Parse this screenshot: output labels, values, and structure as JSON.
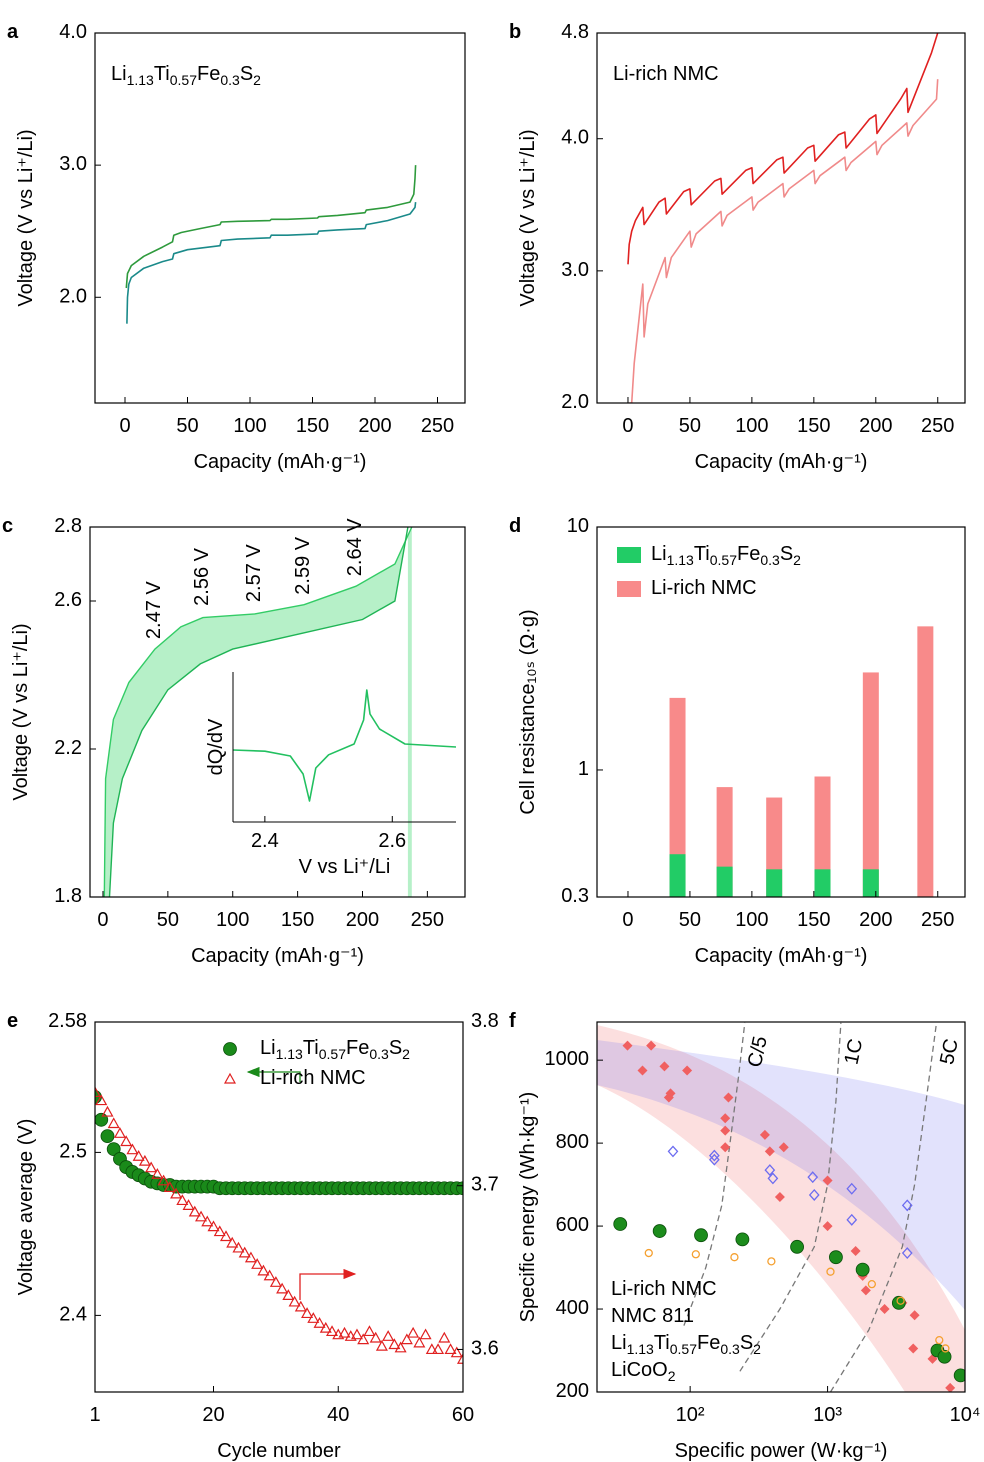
{
  "chart_data": [
    {
      "panel": "a",
      "type": "line",
      "label": "Li1.13Ti0.57Fe0.3S2",
      "xlabel": "Capacity (mAh·g⁻¹)",
      "ylabel": "Voltage (V vs Li⁺/Li)",
      "xlim": [
        -24,
        272
      ],
      "ylim": [
        1.2,
        4.0
      ],
      "xticks": [
        0,
        50,
        100,
        150,
        200,
        250
      ],
      "yticks": [
        {
          "value": 2,
          "label": "2.0"
        },
        {
          "value": 3,
          "label": "3.0"
        },
        {
          "value": 4,
          "label": "4.0"
        }
      ],
      "series": [
        {
          "color": "#2e9a3c",
          "x": [
            1,
            2,
            5,
            15,
            30,
            38,
            39,
            45,
            60,
            76,
            77,
            90,
            116,
            117,
            130,
            154,
            155,
            170,
            192,
            193,
            210,
            228,
            231,
            232,
            232.5
          ],
          "values": [
            2.07,
            2.18,
            2.24,
            2.31,
            2.38,
            2.42,
            2.47,
            2.49,
            2.52,
            2.55,
            2.57,
            2.575,
            2.58,
            2.59,
            2.59,
            2.6,
            2.61,
            2.62,
            2.64,
            2.66,
            2.68,
            2.72,
            2.78,
            2.9,
            3.0
          ]
        },
        {
          "color": "#1a8a8a",
          "x": [
            1.5,
            2,
            3,
            5,
            15,
            30,
            38,
            39,
            50,
            76,
            77,
            90,
            116,
            117,
            130,
            154,
            155,
            170,
            192,
            193,
            210,
            228,
            232,
            232.5
          ],
          "values": [
            1.8,
            2.0,
            2.1,
            2.15,
            2.22,
            2.27,
            2.29,
            2.33,
            2.36,
            2.39,
            2.43,
            2.44,
            2.45,
            2.47,
            2.47,
            2.48,
            2.5,
            2.51,
            2.52,
            2.55,
            2.58,
            2.63,
            2.68,
            2.72
          ]
        }
      ]
    },
    {
      "panel": "b",
      "type": "line",
      "label": "Li-rich NMC",
      "xlabel": "Capacity (mAh·g⁻¹)",
      "ylabel": "Voltage (V vs Li⁺/Li)",
      "xlim": [
        -25,
        272
      ],
      "ylim": [
        2.0,
        4.8
      ],
      "xticks": [
        0,
        50,
        100,
        150,
        200,
        250
      ],
      "yticks": [
        {
          "value": 2,
          "label": "2.0"
        },
        {
          "value": 3,
          "label": "3.0"
        },
        {
          "value": 4,
          "label": "4.0"
        },
        4.8
      ],
      "series": [
        {
          "color": "#e02020",
          "x": [
            0,
            1,
            3,
            6,
            12,
            13,
            25,
            30,
            31,
            45,
            50,
            51,
            70,
            75,
            76,
            95,
            100,
            101,
            120,
            125,
            126,
            145,
            150,
            151,
            170,
            175,
            176,
            195,
            200,
            201,
            220,
            225,
            226,
            245,
            250
          ],
          "values": [
            3.05,
            3.2,
            3.3,
            3.38,
            3.48,
            3.35,
            3.52,
            3.55,
            3.43,
            3.6,
            3.62,
            3.5,
            3.68,
            3.7,
            3.58,
            3.76,
            3.78,
            3.66,
            3.84,
            3.86,
            3.74,
            3.93,
            3.95,
            3.83,
            4.03,
            4.05,
            3.93,
            4.15,
            4.18,
            4.04,
            4.3,
            4.38,
            4.2,
            4.65,
            4.8
          ]
        },
        {
          "color": "#f08a8a",
          "x": [
            250,
            249,
            230,
            226,
            225,
            205,
            201,
            200,
            180,
            176,
            175,
            155,
            151,
            150,
            130,
            126,
            125,
            105,
            101,
            100,
            80,
            76,
            75,
            55,
            51,
            50,
            35,
            31,
            30,
            16,
            13,
            12,
            5,
            3,
            1
          ],
          "values": [
            4.45,
            4.3,
            4.1,
            4.02,
            4.12,
            3.95,
            3.88,
            3.98,
            3.82,
            3.76,
            3.86,
            3.72,
            3.66,
            3.76,
            3.62,
            3.56,
            3.66,
            3.52,
            3.46,
            3.56,
            3.42,
            3.34,
            3.45,
            3.28,
            3.18,
            3.3,
            3.1,
            2.95,
            3.1,
            2.75,
            2.5,
            2.9,
            2.3,
            2.0,
            2.0
          ]
        }
      ]
    },
    {
      "panel": "c",
      "type": "area",
      "xlabel": "Capacity (mAh·g⁻¹)",
      "ylabel": "Voltage (V vs Li⁺/Li)",
      "xlim": [
        -10,
        279
      ],
      "ylim": [
        1.8,
        2.8
      ],
      "xticks": [
        0,
        50,
        100,
        150,
        200,
        250
      ],
      "yticks": [
        1.8,
        2.2,
        2.6,
        2.8
      ],
      "series": [
        {
          "color": "#33cc66",
          "fill": "#b6f0c8",
          "x": [
            1,
            2,
            8,
            20,
            40,
            60,
            77,
            117,
            155,
            195,
            225,
            238
          ],
          "values": [
            1.8,
            2.12,
            2.28,
            2.38,
            2.47,
            2.53,
            2.555,
            2.565,
            2.59,
            2.64,
            2.7,
            2.8
          ]
        },
        {
          "color": "#1fb455",
          "fill": "#ffffff",
          "x": [
            5,
            8,
            15,
            30,
            50,
            75,
            100,
            150,
            200,
            225,
            235
          ],
          "values": [
            1.8,
            2.0,
            2.12,
            2.25,
            2.36,
            2.43,
            2.47,
            2.51,
            2.55,
            2.6,
            2.8
          ]
        }
      ],
      "annotations": [
        {
          "text": "2.47 V",
          "x": 40,
          "y": 2.47
        },
        {
          "text": "2.56 V",
          "x": 77,
          "y": 2.56
        },
        {
          "text": "2.57 V",
          "x": 117,
          "y": 2.57
        },
        {
          "text": "2.59 V",
          "x": 155,
          "y": 2.59
        },
        {
          "text": "2.64 V",
          "x": 195,
          "y": 2.64
        }
      ],
      "inset": {
        "type": "line",
        "xlabel": "V vs Li⁺/Li",
        "ylabel": "dQ/dV",
        "xlim": [
          2.35,
          2.7
        ],
        "ylim": [
          -1.2,
          1.3
        ],
        "xticks": [
          2.4,
          2.6
        ],
        "series": [
          {
            "color": "#22c060",
            "x": [
              2.35,
              2.4,
              2.44,
              2.46,
              2.47,
              2.48,
              2.5,
              2.54,
              2.555,
              2.56,
              2.565,
              2.58,
              2.62,
              2.7
            ],
            "values": [
              0,
              -0.02,
              -0.1,
              -0.4,
              -0.85,
              -0.3,
              -0.08,
              0.1,
              0.5,
              1.0,
              0.6,
              0.35,
              0.1,
              0.05
            ]
          }
        ]
      }
    },
    {
      "panel": "d",
      "type": "bar",
      "ylog": true,
      "legend": "upper left",
      "xlabel": "Capacity (mAh·g⁻¹)",
      "ylabel": "Cell resistance₁₀ₛ (Ω·g)",
      "xlim": [
        -25,
        272
      ],
      "ylim": [
        0.3,
        10
      ],
      "xticks": [
        0,
        50,
        100,
        150,
        200,
        250
      ],
      "yticks": [
        0.3,
        1,
        10
      ],
      "x": [
        40,
        78,
        118,
        157,
        196,
        240
      ],
      "series": [
        {
          "name": "Li-rich NMC",
          "color": "#f88a8a",
          "values": [
            1.98,
            0.85,
            0.77,
            0.94,
            2.52,
            3.9
          ]
        },
        {
          "name": "Li1.13Ti0.57Fe0.3S2",
          "color": "#22cc66",
          "values": [
            0.45,
            0.4,
            0.39,
            0.39,
            0.39,
            null
          ]
        }
      ]
    },
    {
      "panel": "e",
      "type": "scatter",
      "legend": "upper right",
      "xlabel": "Cycle number",
      "ylabel": "Voltage average (V)",
      "xlim": [
        1,
        60
      ],
      "ylim": [
        2.353,
        2.58
      ],
      "y2lim": [
        3.574,
        3.8
      ],
      "xticks": [
        1,
        20,
        40,
        60
      ],
      "yticks": [
        2.4,
        2.5,
        2.58
      ],
      "y2ticks": [
        3.6,
        3.7,
        3.8
      ],
      "x": [
        1,
        2,
        3,
        4,
        5,
        6,
        7,
        8,
        9,
        10,
        11,
        12,
        13,
        14,
        15,
        16,
        17,
        18,
        19,
        20,
        21,
        22,
        23,
        24,
        25,
        26,
        27,
        28,
        29,
        30,
        31,
        32,
        33,
        34,
        35,
        36,
        37,
        38,
        39,
        40,
        41,
        42,
        43,
        44,
        45,
        46,
        47,
        48,
        49,
        50,
        51,
        52,
        53,
        54,
        55,
        56,
        57,
        58,
        59,
        60
      ],
      "series": [
        {
          "name": "Li1.13Ti0.57Fe0.3S2",
          "color": "#1a8a1a",
          "marker": "circle",
          "values": [
            2.534,
            2.52,
            2.51,
            2.502,
            2.496,
            2.491,
            2.488,
            2.486,
            2.484,
            2.482,
            2.481,
            2.48,
            2.48,
            2.479,
            2.479,
            2.479,
            2.479,
            2.479,
            2.479,
            2.479,
            2.478,
            2.478,
            2.478,
            2.478,
            2.478,
            2.478,
            2.478,
            2.478,
            2.478,
            2.478,
            2.478,
            2.478,
            2.478,
            2.478,
            2.478,
            2.478,
            2.478,
            2.478,
            2.478,
            2.478,
            2.478,
            2.478,
            2.478,
            2.478,
            2.478,
            2.478,
            2.478,
            2.478,
            2.478,
            2.478,
            2.478,
            2.478,
            2.478,
            2.478,
            2.478,
            2.478,
            2.478,
            2.478,
            2.478,
            2.478
          ]
        },
        {
          "name": "Li-rich NMC",
          "color": "#e02020",
          "marker": "open-triangle",
          "axis": "y2",
          "values": [
            3.757,
            3.752,
            3.745,
            3.738,
            3.732,
            3.727,
            3.722,
            3.718,
            3.715,
            3.711,
            3.707,
            3.703,
            3.699,
            3.695,
            3.691,
            3.688,
            3.684,
            3.681,
            3.678,
            3.675,
            3.672,
            3.669,
            3.665,
            3.662,
            3.659,
            3.656,
            3.652,
            3.648,
            3.645,
            3.641,
            3.637,
            3.633,
            3.629,
            3.626,
            3.622,
            3.619,
            3.616,
            3.613,
            3.611,
            3.609,
            3.61,
            3.608,
            3.609,
            3.606,
            3.611,
            3.607,
            3.602,
            3.608,
            3.603,
            3.601,
            3.606,
            3.61,
            3.604,
            3.609,
            3.6,
            3.6,
            3.607,
            3.6,
            3.598,
            3.594
          ]
        }
      ]
    },
    {
      "panel": "f",
      "type": "scatter",
      "xlog": true,
      "legend": "lower left",
      "xlabel": "Specific power (W·kg⁻¹)",
      "ylabel": "Specific energy (Wh·kg⁻¹)",
      "xlim": [
        21,
        10000
      ],
      "ylim": [
        200,
        1092
      ],
      "xticks": [
        {
          "value": 100,
          "label": "10²"
        },
        {
          "value": 1000,
          "label": "10³"
        },
        {
          "value": 10000,
          "label": "10⁴"
        }
      ],
      "yticks": [
        200,
        400,
        600,
        800,
        1000
      ],
      "series": [
        {
          "name": "Li-rich NMC",
          "color": "#f06060",
          "marker": "diamond",
          "x": [
            35,
            52,
            45,
            65,
            72,
            70,
            95,
            190,
            180,
            180,
            180,
            350,
            380,
            450,
            480,
            1000,
            1000,
            1600,
            1800,
            1900,
            2600,
            3500,
            4300,
            4200,
            5800,
            7800
          ],
          "values": [
            1035,
            1035,
            975,
            985,
            920,
            910,
            975,
            910,
            860,
            830,
            790,
            820,
            780,
            670,
            790,
            710,
            600,
            540,
            480,
            445,
            400,
            415,
            385,
            305,
            280,
            210
          ]
        },
        {
          "name": "NMC 811",
          "color": "#6c6cf0",
          "marker": "open-diamond",
          "x": [
            75,
            150,
            150,
            380,
            400,
            780,
            800,
            1500,
            1500,
            3800,
            3800
          ],
          "values": [
            780,
            770,
            760,
            735,
            715,
            718,
            675,
            690,
            615,
            650,
            535
          ]
        },
        {
          "name": "Li1.13Ti0.57Fe0.3S2",
          "color": "#1c8c1c",
          "marker": "circle",
          "x": [
            31,
            60,
            120,
            240,
            600,
            1150,
            1800,
            3300,
            6300,
            7100,
            9300
          ],
          "values": [
            605,
            588,
            578,
            568,
            550,
            525,
            495,
            415,
            300,
            285,
            240
          ]
        },
        {
          "name": "LiCoO2",
          "color": "#f5a030",
          "marker": "open-circle",
          "x": [
            50,
            110,
            210,
            390,
            1050,
            2100,
            3400,
            6500,
            7200
          ],
          "values": [
            535,
            532,
            525,
            515,
            490,
            460,
            420,
            325,
            305
          ]
        }
      ],
      "guides": [
        {
          "label": "C/5",
          "x": [
            90,
            130,
            170,
            195,
            225,
            250
          ],
          "values": [
            360,
            500,
            650,
            800,
            960,
            1090
          ]
        },
        {
          "label": "1C",
          "x": [
            230,
            450,
            800,
            1000,
            1150,
            1250
          ],
          "values": [
            250,
            400,
            550,
            700,
            900,
            1090
          ]
        },
        {
          "label": "5C",
          "x": [
            1050,
            2000,
            3500,
            4300,
            5200,
            6200
          ],
          "values": [
            200,
            350,
            550,
            700,
            900,
            1090
          ]
        }
      ]
    }
  ]
}
